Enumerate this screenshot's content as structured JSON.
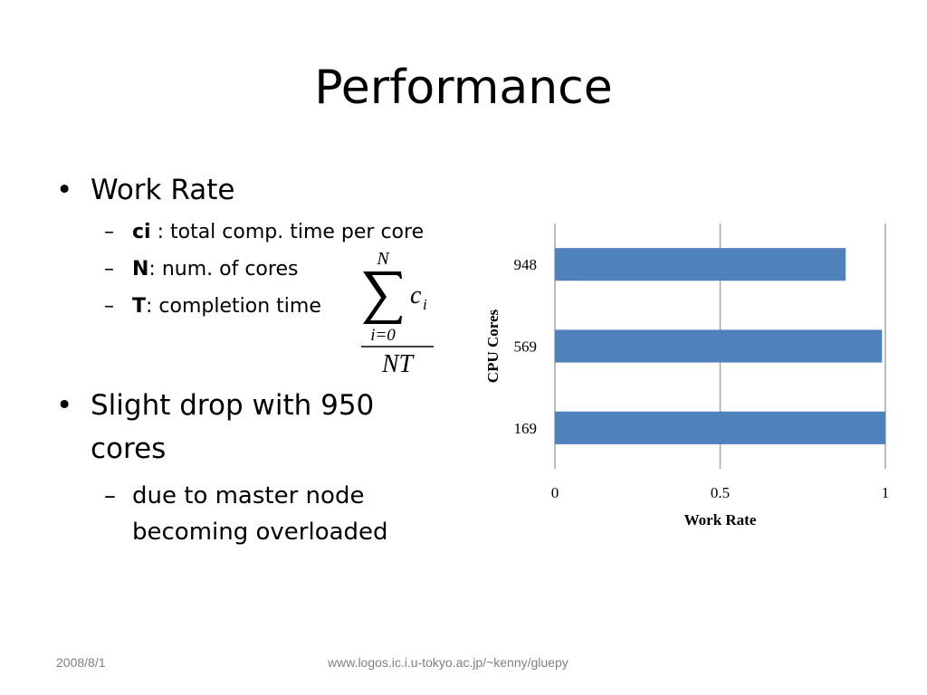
{
  "slide": {
    "title": "Performance"
  },
  "bullets": {
    "work_rate": {
      "label": "Work Rate",
      "items": [
        {
          "term": "ci",
          "text": " : total comp. time per core"
        },
        {
          "term": "N",
          "text": ": num. of cores"
        },
        {
          "term": "T",
          "text": ": completion time"
        }
      ]
    },
    "drop": {
      "line1": "Slight drop with 950",
      "line2": "cores",
      "items": [
        {
          "line1": "due to master node",
          "line2": "becoming overloaded"
        }
      ]
    }
  },
  "formula": {
    "upper_limit": "N",
    "summand": "c",
    "summand_subscript": "i",
    "lower_limit": "i=0",
    "denominator": "NT"
  },
  "chart_data": {
    "type": "bar",
    "orientation": "horizontal",
    "categories": [
      "948",
      "569",
      "169"
    ],
    "values": [
      0.88,
      0.99,
      1.0
    ],
    "xlabel": "Work Rate",
    "ylabel": "CPU Cores",
    "xlim": [
      0,
      1
    ],
    "xticks": [
      "0",
      "0.5",
      "1"
    ],
    "grid": true,
    "bar_color": "#4f81bd",
    "grid_color": "#a6a6a6"
  },
  "footer": {
    "date": "2008/8/1",
    "url": "www.logos.ic.i.u-tokyo.ac.jp/~kenny/gluepy"
  }
}
